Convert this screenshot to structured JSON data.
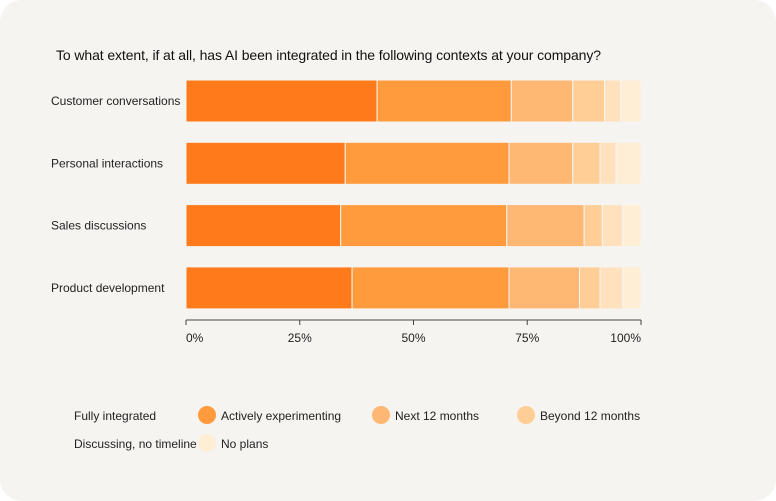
{
  "chart_data": {
    "type": "bar",
    "orientation": "horizontal",
    "stacked": true,
    "title": "To what extent, if at all, has AI been integrated in the following contexts at your company?",
    "categories": [
      "Customer conversations",
      "Personal interactions",
      "Sales discussions",
      "Product development"
    ],
    "series": [
      {
        "name": "Fully integrated",
        "color": "#ff7a1a",
        "values": [
          42,
          35,
          34,
          36.5
        ]
      },
      {
        "name": "Actively experimenting",
        "color": "#ff9a3d",
        "values": [
          29.5,
          36,
          36.5,
          34.5
        ]
      },
      {
        "name": "Next 12 months",
        "color": "#ffb873",
        "values": [
          13.5,
          14,
          17,
          15.5
        ]
      },
      {
        "name": "Beyond 12 months",
        "color": "#ffce96",
        "values": [
          7,
          6,
          4,
          4.5
        ]
      },
      {
        "name": "Discussing, no timeline",
        "color": "#ffe2bd",
        "values": [
          3.5,
          3.5,
          4.5,
          5
        ]
      },
      {
        "name": "No plans",
        "color": "#ffeed6",
        "values": [
          4.5,
          5.5,
          4,
          4
        ]
      }
    ],
    "xticks": [
      "0%",
      "25%",
      "50%",
      "75%",
      "100%"
    ],
    "xlim": [
      0,
      100
    ],
    "legend_position": "bottom"
  },
  "legend": [
    {
      "label": "Fully integrated",
      "color": "#ff7a1a"
    },
    {
      "label": "Actively experimenting",
      "color": "#ff9a3d"
    },
    {
      "label": "Next 12 months",
      "color": "#ffb873"
    },
    {
      "label": "Beyond 12 months",
      "color": "#ffce96"
    },
    {
      "label": "Discussing, no timeline",
      "color": "#ffe2bd"
    },
    {
      "label": "No plans",
      "color": "#ffeed6"
    }
  ]
}
